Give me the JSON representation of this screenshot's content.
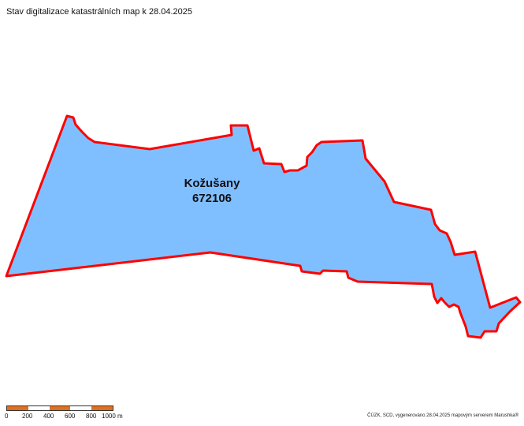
{
  "header": {
    "title": "Stav digitalizace katastrálních map k 28.04.2025"
  },
  "parcel": {
    "name": "Kožušany",
    "code": "672106",
    "fill_color": "#80bfff",
    "border_color": "#ff0000"
  },
  "scale": {
    "labels": [
      "0",
      "200",
      "400",
      "600",
      "800",
      "1000 m"
    ],
    "colors": [
      "#e07020",
      "#ffffff",
      "#e07020",
      "#ffffff",
      "#e07020"
    ]
  },
  "footer": {
    "credits": "ČÚZK, SCD, vygenerováno 28.04.2025 mapovým serverem Marushka®"
  }
}
